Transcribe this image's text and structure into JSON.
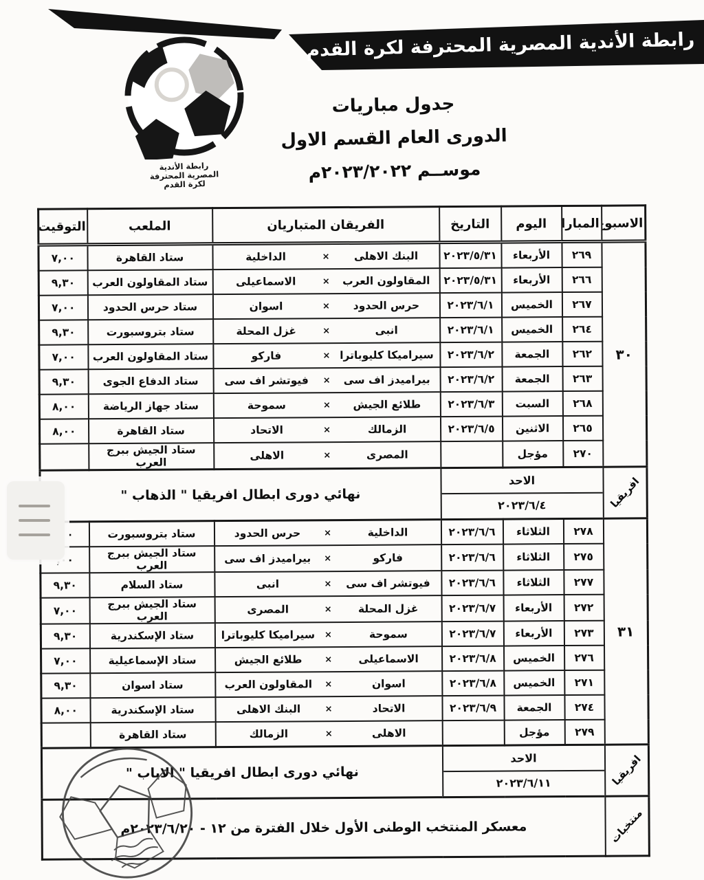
{
  "colors": {
    "banner_bg": "#121212",
    "banner_text": "#ffffff",
    "ink": "#131313",
    "paper": "#fcfbf9"
  },
  "banner": {
    "text": "رابطة الأندية المصرية المحترفة لكرة القدم"
  },
  "logo": {
    "caption": [
      "رابطة الأندية",
      "المصرية المحترفة",
      "لكرة القدم"
    ]
  },
  "titles": {
    "line1": "جدول مباريات",
    "line2": "الدورى العام القسم الاول",
    "line3": "موســم ٢٠٢٣/٢٠٢٢م"
  },
  "table": {
    "vs": "×",
    "headers": {
      "week": "الاسبوع",
      "match": "المباراة",
      "day": "اليوم",
      "date": "التاريخ",
      "teams": "الفريقان المتباريان",
      "stadium": "الملعب",
      "time": "التوقيت"
    },
    "weeks": [
      {
        "number": "٣٠",
        "rows": [
          {
            "match": "٢٦٩",
            "day": "الأربعاء",
            "date": "٢٠٢٣/٥/٣١",
            "team_r": "البنك الاهلى",
            "team_l": "الداخلية",
            "stadium": "ستاد القاهرة",
            "time": "٧,٠٠"
          },
          {
            "match": "٢٦٦",
            "day": "الأربعاء",
            "date": "٢٠٢٣/٥/٣١",
            "team_r": "المقاولون العرب",
            "team_l": "الاسماعيلى",
            "stadium": "ستاد المقاولون العرب",
            "time": "٩,٣٠"
          },
          {
            "match": "٢٦٧",
            "day": "الخميس",
            "date": "٢٠٢٣/٦/١",
            "team_r": "حرس الحدود",
            "team_l": "اسوان",
            "stadium": "ستاد حرس الحدود",
            "time": "٧,٠٠"
          },
          {
            "match": "٢٦٤",
            "day": "الخميس",
            "date": "٢٠٢٣/٦/١",
            "team_r": "انبى",
            "team_l": "غزل المحلة",
            "stadium": "ستاد بتروسبورت",
            "time": "٩,٣٠"
          },
          {
            "match": "٢٦٢",
            "day": "الجمعة",
            "date": "٢٠٢٣/٦/٢",
            "team_r": "سيراميكا كليوباترا",
            "team_l": "فاركو",
            "stadium": "ستاد المقاولون العرب",
            "time": "٧,٠٠"
          },
          {
            "match": "٢٦٣",
            "day": "الجمعة",
            "date": "٢٠٢٣/٦/٢",
            "team_r": "بيراميدز اف سى",
            "team_l": "فيوتشر اف سى",
            "stadium": "ستاد الدفاع الجوى",
            "time": "٩,٣٠"
          },
          {
            "match": "٢٦٨",
            "day": "السبت",
            "date": "٢٠٢٣/٦/٣",
            "team_r": "طلائع الجيش",
            "team_l": "سموحة",
            "stadium": "ستاد جهاز الرياضة",
            "time": "٨,٠٠"
          },
          {
            "match": "٢٦٥",
            "day": "الاثنين",
            "date": "٢٠٢٣/٦/٥",
            "team_r": "الزمالك",
            "team_l": "الاتحاد",
            "stadium": "ستاد القاهرة",
            "time": "٨,٠٠"
          },
          {
            "match": "٢٧٠",
            "day": "مؤجل",
            "date": "",
            "team_r": "المصرى",
            "team_l": "الاهلى",
            "stadium": "ستاد الجيش ببرج العرب",
            "time": ""
          }
        ]
      },
      {
        "number": "٣١",
        "rows": [
          {
            "match": "٢٧٨",
            "day": "الثلاثاء",
            "date": "٢٠٢٣/٦/٦",
            "team_r": "الداخلية",
            "team_l": "حرس الحدود",
            "stadium": "ستاد بتروسبورت",
            "time": ",٠٠"
          },
          {
            "match": "٢٧٥",
            "day": "الثلاثاء",
            "date": "٢٠٢٣/٦/٦",
            "team_r": "فاركو",
            "team_l": "بيراميدز اف سى",
            "stadium": "ستاد الجيش ببرج العرب",
            "time": ",٠٠"
          },
          {
            "match": "٢٧٧",
            "day": "الثلاثاء",
            "date": "٢٠٢٣/٦/٦",
            "team_r": "فيوتشر اف سى",
            "team_l": "انبى",
            "stadium": "ستاد السلام",
            "time": "٩,٣٠"
          },
          {
            "match": "٢٧٢",
            "day": "الأربعاء",
            "date": "٢٠٢٣/٦/٧",
            "team_r": "غزل المحلة",
            "team_l": "المصرى",
            "stadium": "ستاد الجيش ببرج العرب",
            "time": "٧,٠٠"
          },
          {
            "match": "٢٧٣",
            "day": "الأربعاء",
            "date": "٢٠٢٣/٦/٧",
            "team_r": "سموحة",
            "team_l": "سيراميكا كليوباترا",
            "stadium": "ستاد الإسكندرية",
            "time": "٩,٣٠"
          },
          {
            "match": "٢٧٦",
            "day": "الخميس",
            "date": "٢٠٢٣/٦/٨",
            "team_r": "الاسماعيلى",
            "team_l": "طلائع الجيش",
            "stadium": "ستاد الإسماعيلية",
            "time": "٧,٠٠"
          },
          {
            "match": "٢٧١",
            "day": "الخميس",
            "date": "٢٠٢٣/٦/٨",
            "team_r": "اسوان",
            "team_l": "المقاولون العرب",
            "stadium": "ستاد اسوان",
            "time": "٩,٣٠"
          },
          {
            "match": "٢٧٤",
            "day": "الجمعة",
            "date": "٢٠٢٣/٦/٩",
            "team_r": "الاتحاد",
            "team_l": "البنك الاهلى",
            "stadium": "ستاد الإسكندرية",
            "time": "٨,٠٠"
          },
          {
            "match": "٢٧٩",
            "day": "مؤجل",
            "date": "",
            "team_r": "الاهلى",
            "team_l": "الزمالك",
            "stadium": "ستاد القاهرة",
            "time": ""
          }
        ]
      }
    ],
    "sections": [
      {
        "label": "افريقيا",
        "day": "الاحد",
        "date": "٢٠٢٣/٦/٤",
        "title": "نهائي دورى ابطال افريقيا \" الذهاب \""
      },
      {
        "label": "افريقيا",
        "day": "الاحد",
        "date": "٢٠٢٣/٦/١١",
        "title": "نهائي دورى ابطال افريقيا \" الاياب \""
      }
    ],
    "bottom": {
      "label": "منتخبات",
      "text": "معسكر المنتخب الوطنى الأول خلال الفترة من ١٢ - ٢٠٢٣/٦/٢٠م"
    }
  }
}
